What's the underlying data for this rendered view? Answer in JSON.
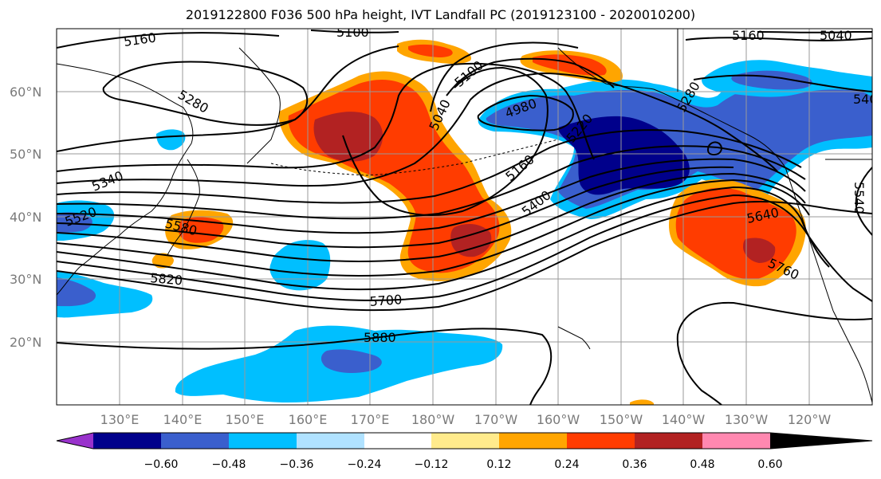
{
  "title": "2019122800 F036 500 hPa height, IVT Landfall PC (2019123100 - 2020010200)",
  "lat_labels": [
    "60°N",
    "50°N",
    "40°N",
    "30°N",
    "20°N"
  ],
  "lon_labels": [
    "130°E",
    "140°E",
    "150°E",
    "160°E",
    "170°E",
    "180°W",
    "170°W",
    "160°W",
    "150°W",
    "140°W",
    "130°W",
    "120°W"
  ],
  "contour_labels": [
    "5160",
    "5100",
    "5040",
    "5100",
    "5280",
    "5160",
    "5040",
    "4980",
    "5220",
    "5280",
    "540",
    "5340",
    "5520",
    "5580",
    "5820",
    "5700",
    "5880",
    "5400",
    "5160",
    "5640",
    "5760",
    "5540"
  ],
  "colorbar": {
    "colors": [
      "#9932cc",
      "#00008b",
      "#3a5fcd",
      "#00bfff",
      "#b0e2ff",
      "#ffffff",
      "#ffeb8c",
      "#ffa500",
      "#ff3c00",
      "#b22222",
      "#ff88b0"
    ],
    "labels": [
      "−0.60",
      "−0.48",
      "−0.36",
      "−0.24",
      "−0.12",
      "0.12",
      "0.24",
      "0.36",
      "0.48",
      "0.60"
    ]
  }
}
